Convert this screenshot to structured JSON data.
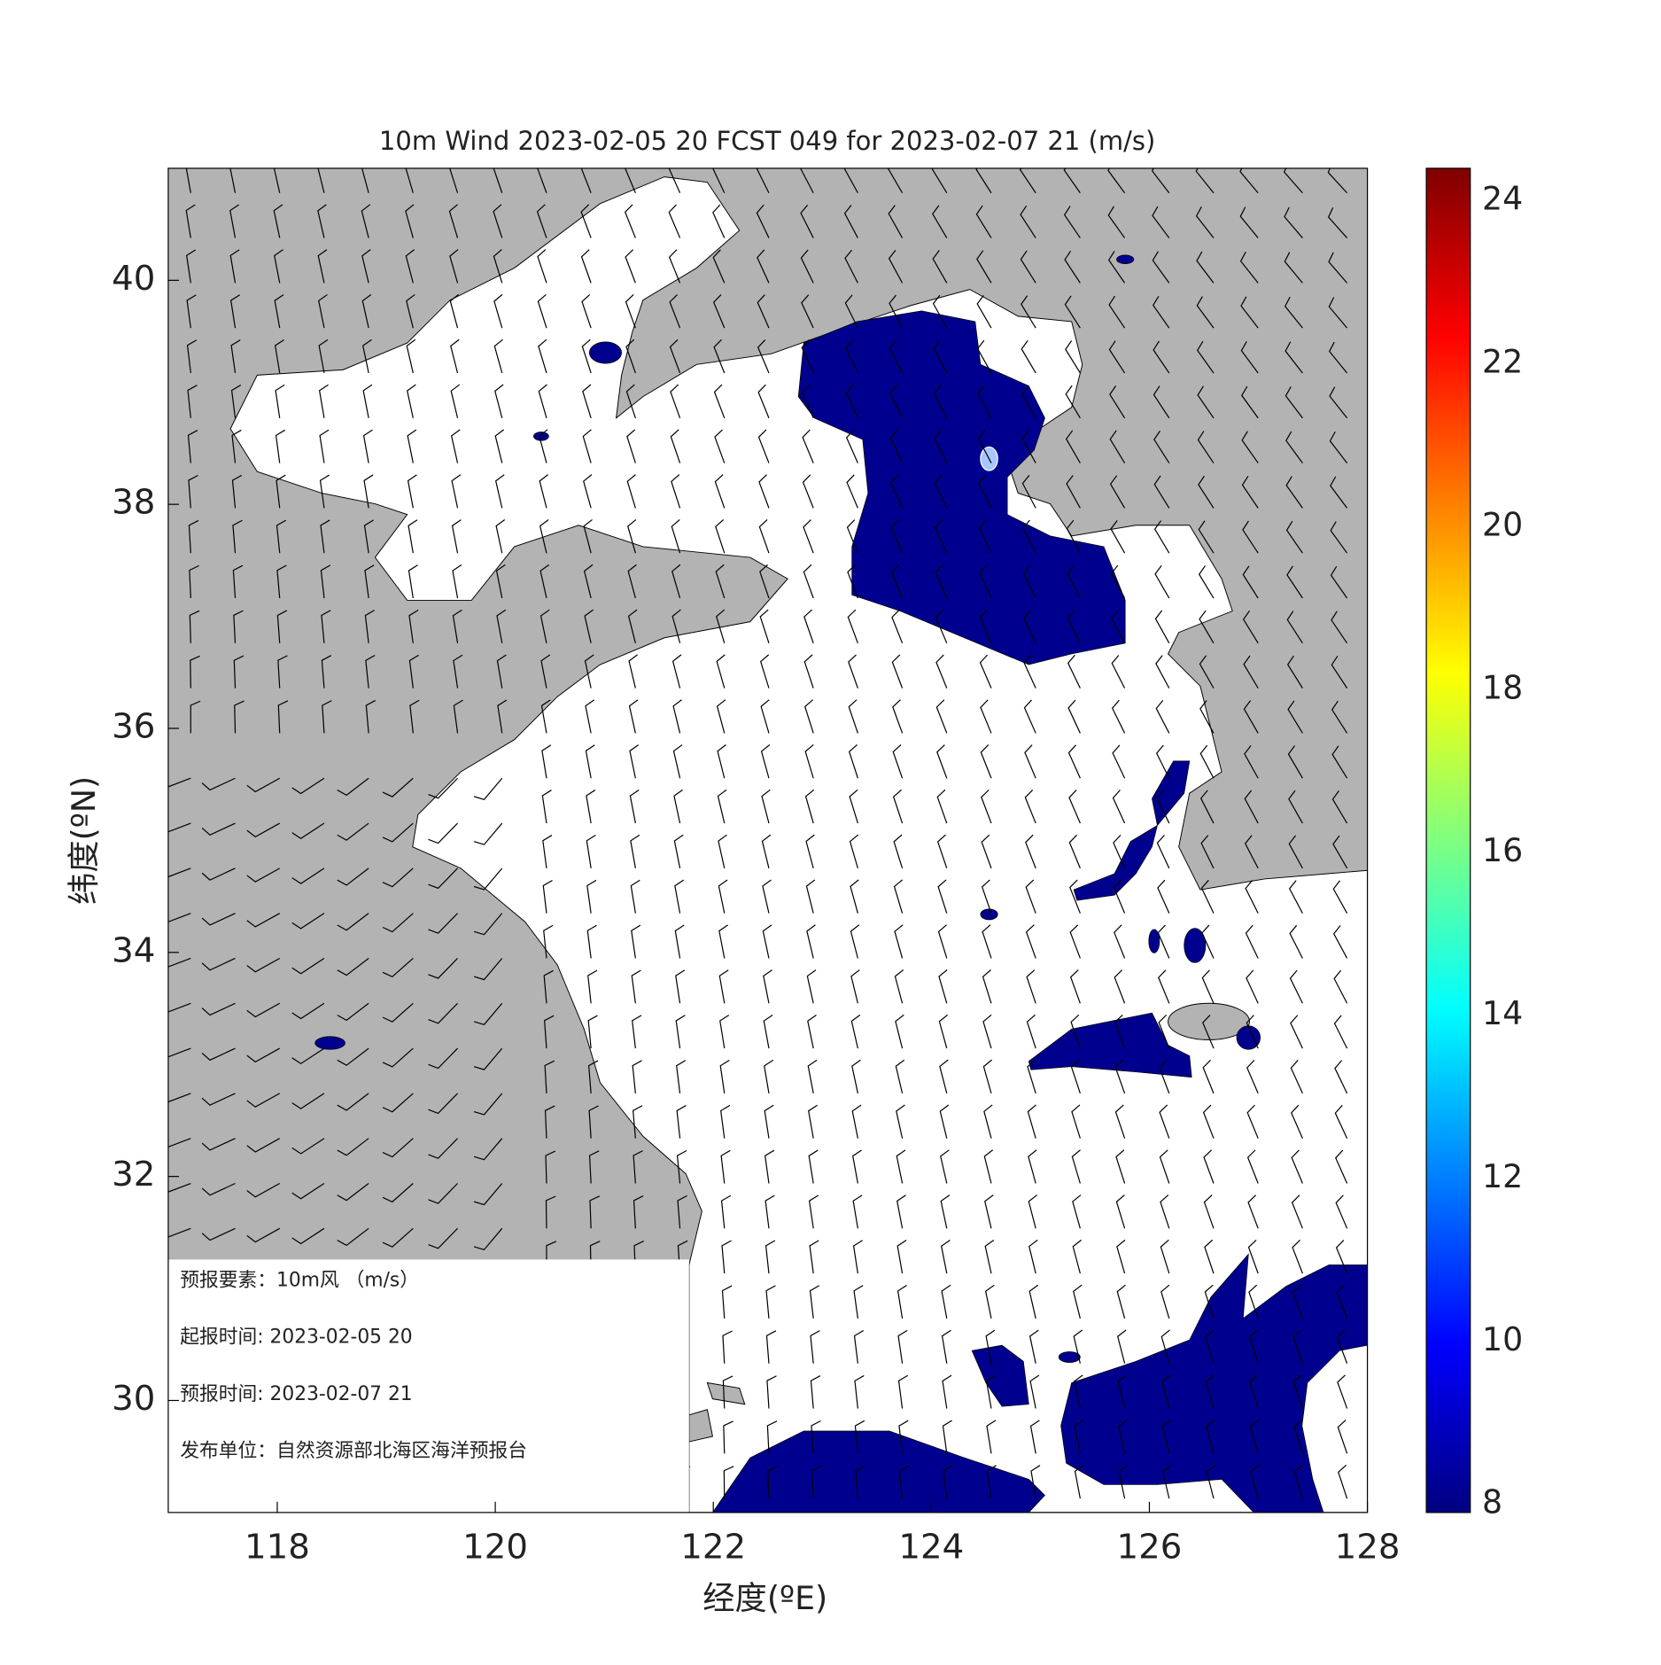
{
  "map": {
    "title": "10m Wind 2023-02-05 20 FCST 049 for 2023-02-07 21 (m/s)",
    "xlabel": "经度(ºE)",
    "ylabel": "纬度(ºN)",
    "lon_range": [
      117,
      128
    ],
    "lat_range": [
      29,
      41
    ],
    "lon_ticks": [
      118,
      120,
      122,
      124,
      126,
      128
    ],
    "lat_ticks": [
      30,
      32,
      34,
      36,
      38,
      40
    ],
    "colorbar": {
      "range": [
        7.9,
        24.4
      ],
      "ticks": [
        8,
        10,
        12,
        14,
        16,
        18,
        20,
        22,
        24
      ],
      "colormap": "jet"
    }
  },
  "info_box": {
    "lines": [
      "预报要素：10m风 （m/s）",
      "起报时间: 2023-02-05 20",
      "预报时间: 2023-02-07 21",
      "发布单位：自然资源部北海区海洋预报台"
    ]
  }
}
